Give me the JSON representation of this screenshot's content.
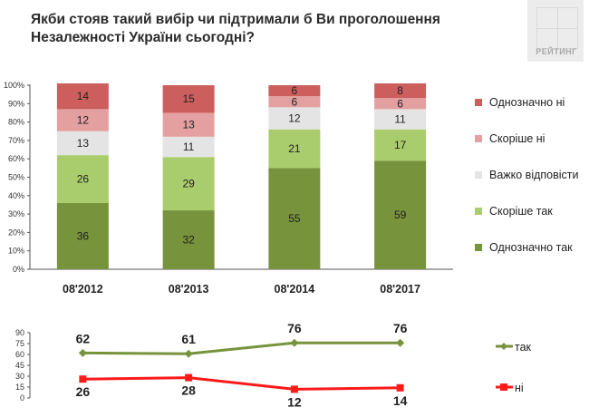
{
  "title": "Якби стояв такий вибір чи підтримали б Ви проголошення Незалежності України сьогодні?",
  "logo_text": "РЕЙТИНГ",
  "chart_data": [
    {
      "type": "bar",
      "stacked": true,
      "percent": true,
      "categories": [
        "08'2012",
        "08'2013",
        "08'2014",
        "08'2017"
      ],
      "yticks": [
        "0%",
        "10%",
        "20%",
        "30%",
        "40%",
        "50%",
        "60%",
        "70%",
        "80%",
        "90%",
        "100%"
      ],
      "ylim": [
        0,
        100
      ],
      "series": [
        {
          "name": "Однозначно так",
          "color": "#77933c",
          "label_color": "#1a1a1a",
          "values": [
            36,
            32,
            55,
            59
          ]
        },
        {
          "name": "Скоріше так",
          "color": "#a9cd6c",
          "label_color": "#1a1a1a",
          "values": [
            26,
            29,
            21,
            17
          ]
        },
        {
          "name": "Важко відповісти",
          "color": "#e4e4e4",
          "label_color": "#1a1a1a",
          "values": [
            13,
            11,
            12,
            11
          ]
        },
        {
          "name": "Скоріше ні",
          "color": "#e4a0a0",
          "label_color": "#1a1a1a",
          "values": [
            12,
            13,
            6,
            6
          ]
        },
        {
          "name": "Однозначно ні",
          "color": "#cd5e5e",
          "label_color": "#1a1a1a",
          "values": [
            14,
            15,
            6,
            8
          ]
        }
      ],
      "legend_order": [
        4,
        3,
        2,
        1,
        0
      ]
    },
    {
      "type": "line",
      "categories": [
        "08'2012",
        "08'2013",
        "08'2014",
        "08'2017"
      ],
      "yticks": [
        "0",
        "15",
        "30",
        "45",
        "60",
        "75",
        "90"
      ],
      "ylim": [
        0,
        90
      ],
      "series": [
        {
          "name": "так",
          "color": "#77933c",
          "marker": "diamond",
          "values": [
            62,
            61,
            76,
            76
          ]
        },
        {
          "name": "ні",
          "color": "#ff1a1a",
          "marker": "square",
          "values": [
            26,
            28,
            12,
            14
          ]
        }
      ]
    }
  ]
}
